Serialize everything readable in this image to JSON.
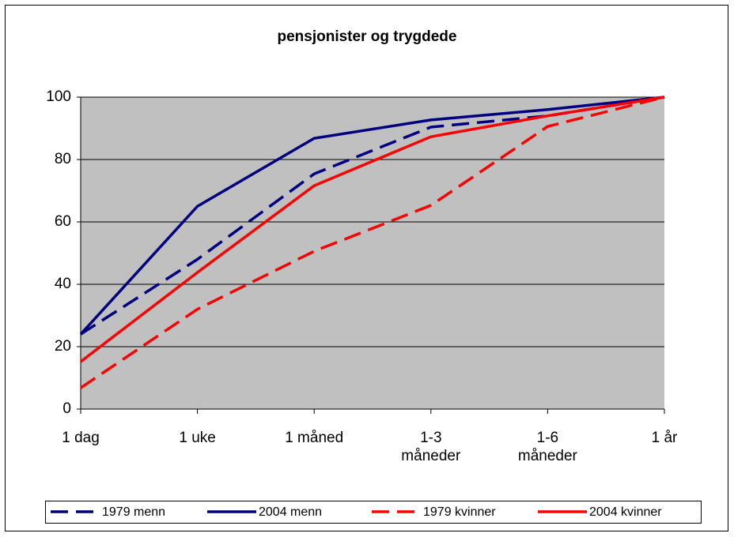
{
  "chart_data": {
    "type": "line",
    "title": "pensjonister og trygdede",
    "categories": [
      "1 dag",
      "1 uke",
      "1 måned",
      "1-3 måneder",
      "1-6 måneder",
      "1 år"
    ],
    "series": [
      {
        "name": "1979 menn",
        "color": "#000080",
        "dashed": true,
        "values": [
          24,
          48,
          75.4,
          90.4,
          94,
          100
        ]
      },
      {
        "name": "2004 menn",
        "color": "#000080",
        "dashed": false,
        "values": [
          24,
          65,
          86.8,
          92.7,
          96,
          100
        ]
      },
      {
        "name": "1979 kvinner",
        "color": "#ff0000",
        "dashed": true,
        "values": [
          6.8,
          32,
          50.6,
          65.3,
          90.6,
          100
        ]
      },
      {
        "name": "2004 kvinner",
        "color": "#ff0000",
        "dashed": false,
        "values": [
          15.2,
          43.8,
          71.6,
          87.3,
          94,
          100
        ]
      }
    ],
    "ylim": [
      0,
      100
    ],
    "yticks": [
      0,
      20,
      40,
      60,
      80,
      100
    ],
    "grid": true,
    "legend": "bottom"
  }
}
